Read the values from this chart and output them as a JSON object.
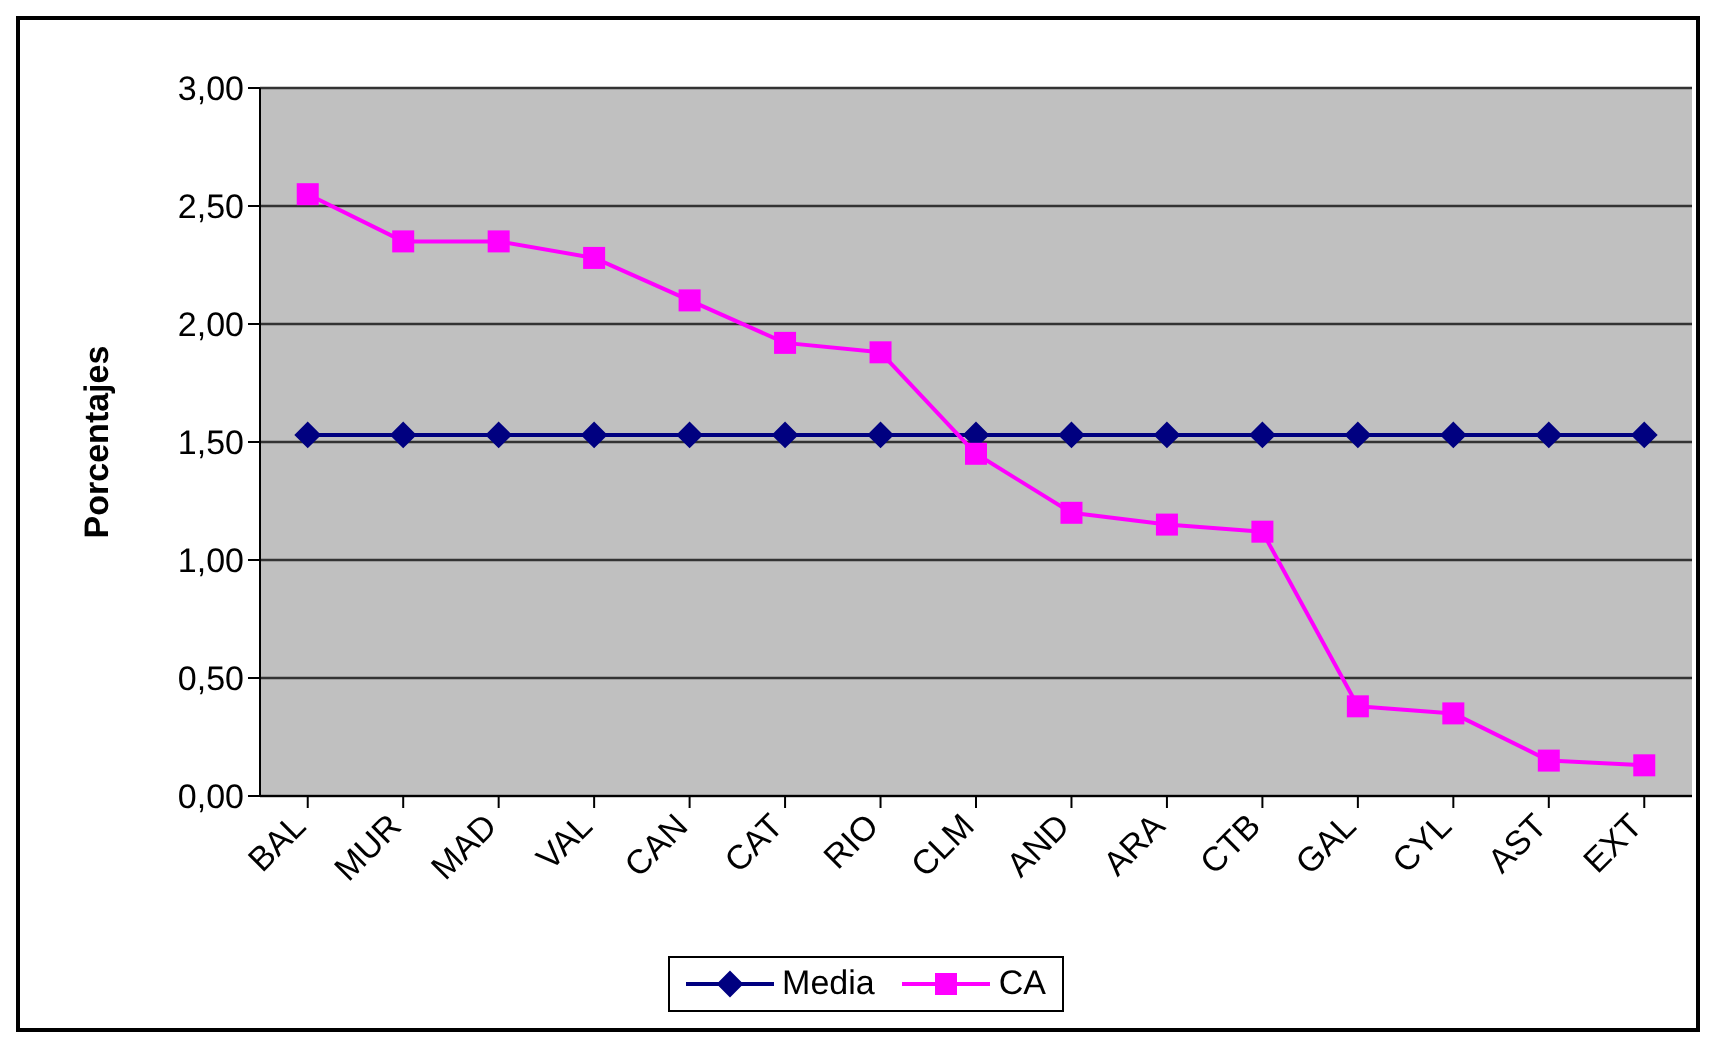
{
  "chart_data": {
    "type": "line",
    "ylabel": "Porcentajes",
    "categories": [
      "BAL",
      "MUR",
      "MAD",
      "VAL",
      "CAN",
      "CAT",
      "RIO",
      "CLM",
      "AND",
      "ARA",
      "CTB",
      "GAL",
      "CYL",
      "AST",
      "EXT"
    ],
    "series": [
      {
        "name": "Media",
        "color": "#000080",
        "marker": "diamond",
        "values": [
          1.53,
          1.53,
          1.53,
          1.53,
          1.53,
          1.53,
          1.53,
          1.53,
          1.53,
          1.53,
          1.53,
          1.53,
          1.53,
          1.53,
          1.53
        ]
      },
      {
        "name": "CA",
        "color": "#ff00ff",
        "marker": "square",
        "values": [
          2.55,
          2.35,
          2.35,
          2.28,
          2.1,
          1.92,
          1.88,
          1.45,
          1.2,
          1.15,
          1.12,
          0.38,
          0.35,
          0.15,
          0.13
        ]
      }
    ],
    "ylim": [
      0,
      3
    ],
    "yticks": [
      {
        "value": 0,
        "label": "0,00"
      },
      {
        "value": 0.5,
        "label": "0,50"
      },
      {
        "value": 1,
        "label": "1,00"
      },
      {
        "value": 1.5,
        "label": "1,50"
      },
      {
        "value": 2,
        "label": "2,00"
      },
      {
        "value": 2.5,
        "label": "2,50"
      },
      {
        "value": 3,
        "label": "3,00"
      }
    ],
    "grid": "y",
    "legend": "bottom"
  }
}
